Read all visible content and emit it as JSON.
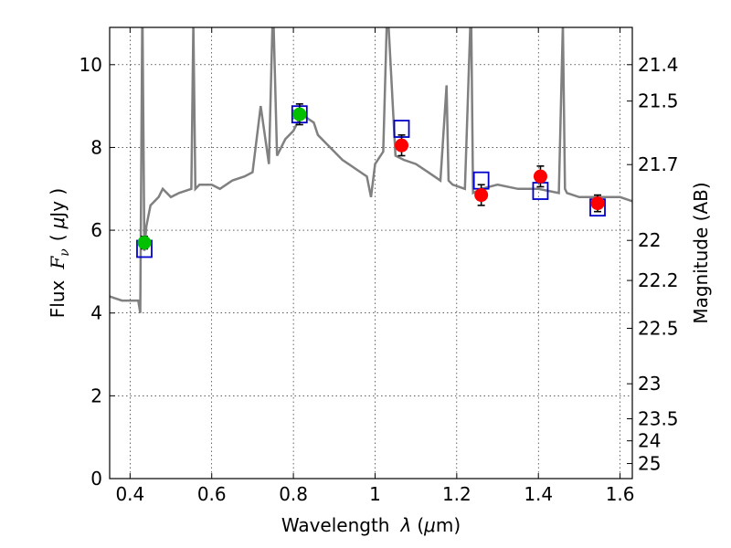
{
  "chart_data": {
    "type": "scatter",
    "xlabel_text": "Wavelength",
    "xlabel_symbol": "λ",
    "xlabel_unit_open": "(",
    "xlabel_unit_mu": "μ",
    "xlabel_unit_rest": "m)",
    "ylabel_text": "Flux",
    "ylabel_symbol_F": "F",
    "ylabel_symbol_sub": "ν",
    "ylabel_unit_open": "(",
    "ylabel_unit_mu": "μ",
    "ylabel_unit_rest": "Jy )",
    "y2label": "Magnitude (AB)",
    "xlim": [
      0.35,
      1.63
    ],
    "ylim": [
      0,
      10.9
    ],
    "xticks": [
      0.4,
      0.6,
      0.8,
      1.0,
      1.2,
      1.4,
      1.6
    ],
    "xtick_labels": [
      "0.4",
      "0.6",
      "0.8",
      "1",
      "1.2",
      "1.4",
      "1.6"
    ],
    "yticks": [
      0,
      2,
      4,
      6,
      8,
      10
    ],
    "ytick_labels": [
      "0",
      "2",
      "4",
      "6",
      "8",
      "10"
    ],
    "mag_ticks": [
      21.4,
      21.5,
      21.7,
      22,
      22.2,
      22.5,
      23,
      23.5,
      24,
      25
    ],
    "mag_tick_labels": [
      "21.4",
      "21.5",
      "21.7",
      "22",
      "22.2",
      "22.5",
      "23",
      "23.5",
      "24",
      "25"
    ],
    "grid": true,
    "colors": {
      "spectrum": "#808080",
      "optical_points": "#00c000",
      "nir_points": "#ff0000",
      "model_boxes": "#0000cc",
      "errorbars": "#000000"
    },
    "model_spectrum": {
      "x": [
        0.35,
        0.38,
        0.4,
        0.42,
        0.425,
        0.43,
        0.435,
        0.44,
        0.45,
        0.47,
        0.48,
        0.5,
        0.52,
        0.55,
        0.555,
        0.56,
        0.57,
        0.6,
        0.62,
        0.65,
        0.68,
        0.7,
        0.72,
        0.74,
        0.75,
        0.76,
        0.78,
        0.8,
        0.82,
        0.85,
        0.86,
        0.88,
        0.9,
        0.92,
        0.95,
        0.98,
        0.99,
        1.0,
        1.02,
        1.03,
        1.05,
        1.07,
        1.1,
        1.13,
        1.16,
        1.175,
        1.18,
        1.19,
        1.22,
        1.235,
        1.24,
        1.26,
        1.3,
        1.35,
        1.4,
        1.45,
        1.46,
        1.465,
        1.47,
        1.5,
        1.55,
        1.58,
        1.6,
        1.63
      ],
      "y": [
        4.4,
        4.3,
        4.3,
        4.3,
        4.0,
        11.5,
        5.5,
        6.1,
        6.6,
        6.8,
        7.0,
        6.8,
        6.9,
        7.0,
        11.0,
        7.0,
        7.1,
        7.1,
        7.0,
        7.2,
        7.3,
        7.4,
        9.0,
        7.6,
        11.5,
        7.8,
        8.2,
        8.4,
        8.8,
        8.6,
        8.3,
        8.1,
        7.9,
        7.7,
        7.5,
        7.3,
        6.8,
        7.6,
        7.9,
        11.5,
        7.8,
        7.7,
        7.6,
        7.4,
        7.2,
        9.5,
        7.2,
        7.1,
        7.0,
        11.5,
        6.9,
        7.0,
        7.1,
        7.0,
        7.0,
        6.9,
        11.0,
        7.0,
        6.9,
        6.8,
        6.8,
        6.8,
        6.8,
        6.7
      ]
    },
    "series": [
      {
        "marker": "circle",
        "x": [
          0.435,
          0.815
        ],
        "y": [
          5.7,
          8.8
        ],
        "yerr": [
          0.15,
          0.25
        ]
      },
      {
        "marker": "circle",
        "x": [
          1.065,
          1.26,
          1.405,
          1.545
        ],
        "y": [
          8.05,
          6.85,
          7.3,
          6.65
        ],
        "yerr": [
          0.25,
          0.25,
          0.25,
          0.2
        ]
      },
      {
        "marker": "square",
        "x": [
          0.435,
          0.815,
          1.065,
          1.26,
          1.405,
          1.545
        ],
        "y": [
          5.55,
          8.8,
          8.45,
          7.2,
          6.95,
          6.55
        ]
      }
    ]
  }
}
